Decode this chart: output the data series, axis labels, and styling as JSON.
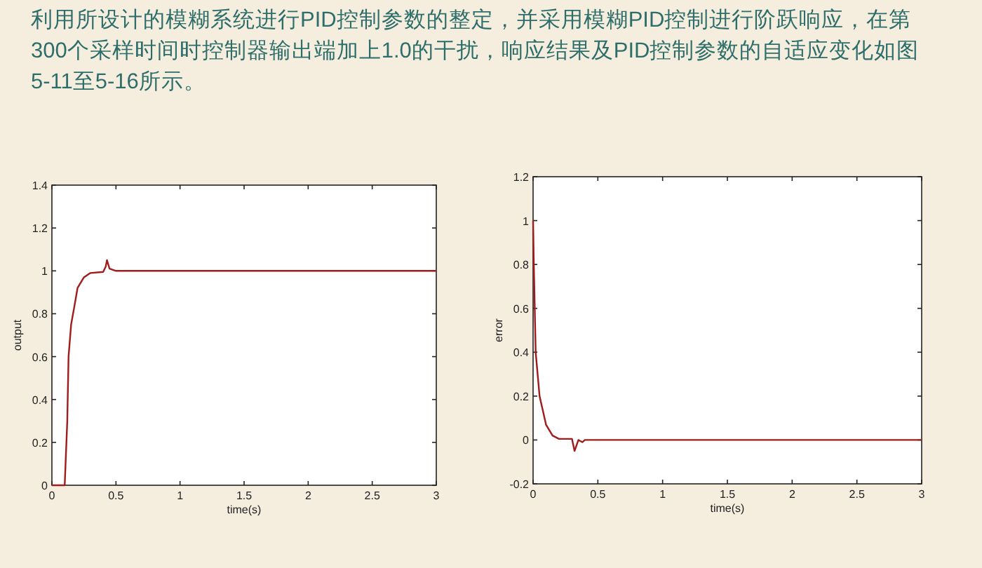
{
  "chart_data": [
    {
      "type": "line",
      "annotations": [
        "利用所设计的模糊系统进行PID控制参数的整定，并采用模糊PID控制进行阶跃响应，在第300个采样时间时控制器输出端加上1.0的干扰，响应结果及PID控制参数的自适应变化如图5-11至5-16所示。"
      ],
      "xlabel": "time(s)",
      "ylabel": "output",
      "x": [
        0,
        0.1,
        0.12,
        0.13,
        0.15,
        0.18,
        0.2,
        0.25,
        0.3,
        0.4,
        0.42,
        0.43,
        0.45,
        0.5,
        3
      ],
      "series": [
        {
          "color": "#a01c1c",
          "values": [
            0,
            0,
            0.3,
            0.6,
            0.75,
            0.85,
            0.92,
            0.97,
            0.99,
            0.995,
            1.02,
            1.05,
            1.01,
            1.0,
            1.0
          ]
        }
      ],
      "xlim": [
        0,
        3
      ],
      "ylim": [
        0,
        1.4
      ],
      "xticks": [
        0,
        0.5,
        1,
        1.5,
        2,
        2.5,
        3
      ],
      "yticks": [
        0,
        0.2,
        0.4,
        0.6,
        0.8,
        1,
        1.2,
        1.4
      ],
      "grid": false
    },
    {
      "type": "line",
      "xlabel": "time(s)",
      "ylabel": "error",
      "x": [
        0,
        0.005,
        0.02,
        0.05,
        0.1,
        0.15,
        0.2,
        0.3,
        0.32,
        0.35,
        0.38,
        0.4,
        3
      ],
      "series": [
        {
          "color": "#a01c1c",
          "values": [
            1,
            0.82,
            0.4,
            0.2,
            0.07,
            0.02,
            0.005,
            0.005,
            -0.05,
            0,
            -0.01,
            0,
            0
          ]
        }
      ],
      "xlim": [
        0,
        3
      ],
      "ylim": [
        -0.2,
        1.2
      ],
      "xticks": [
        0,
        0.5,
        1,
        1.5,
        2,
        2.5,
        3
      ],
      "yticks": [
        -0.2,
        0,
        0.2,
        0.4,
        0.6,
        0.8,
        1,
        1.2
      ],
      "grid": false
    }
  ]
}
